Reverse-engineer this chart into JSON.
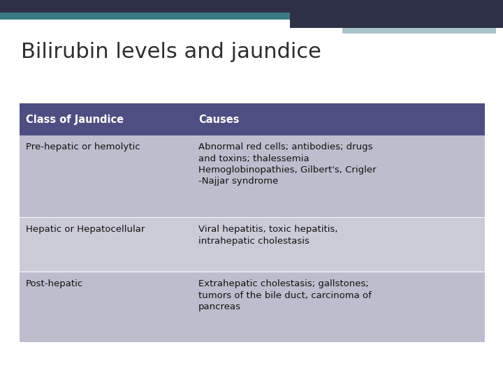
{
  "title": "Bilirubin levels and jaundice",
  "title_fontsize": 22,
  "title_color": "#2e2e2e",
  "background_color": "#ffffff",
  "header_bg_color": "#4e4e82",
  "header_text_color": "#ffffff",
  "header_fontsize": 10.5,
  "cell_text_color": "#111111",
  "cell_fontsize": 9.5,
  "row_bg_colors": [
    "#bdbdce",
    "#cbcbd8",
    "#bdbdce"
  ],
  "top_bar_dark_color": "#2e3047",
  "top_bar_teal_color": "#6a9ea5",
  "top_bar_light_color": "#a8c4c8",
  "col1_label": "Class of Jaundice",
  "col2_label": "Causes",
  "rows": [
    {
      "col1": "Pre-hepatic or hemolytic",
      "col2": "Abnormal red cells; antibodies; drugs\nand toxins; thalessemia\nHemoglobinopathies, Gilbert's, Crigler\n-Najjar syndrome"
    },
    {
      "col1": "Hepatic or Hepatocellular",
      "col2": "Viral hepatitis, toxic hepatitis,\nintrahepatic cholestasis"
    },
    {
      "col1": "Post-hepatic",
      "col2": "Extrahepatic cholestasis; gallstones;\ntumors of the bile duct, carcinoma of\npancreas"
    }
  ],
  "fig_width": 7.2,
  "fig_height": 5.4,
  "dpi": 100
}
